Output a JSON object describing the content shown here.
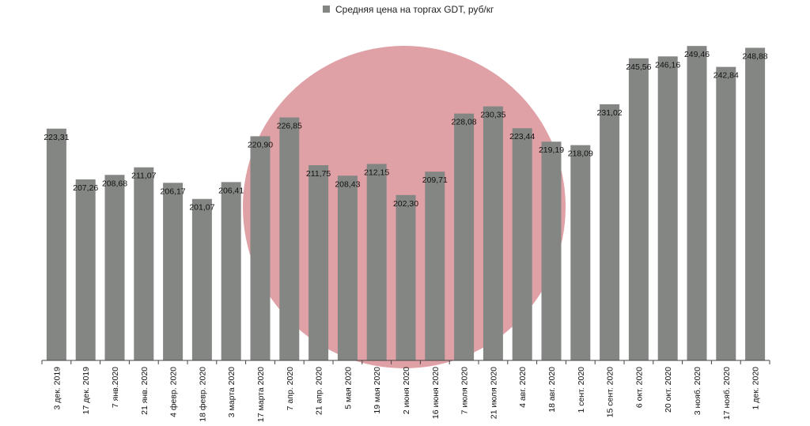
{
  "chart_data": {
    "type": "bar",
    "title": "",
    "xlabel": "",
    "ylabel": "",
    "ylim": [
      150,
      255
    ],
    "grid": false,
    "legend_position": "top-center",
    "series": [
      {
        "name": "Средняя цена на торгах GDT, руб/кг",
        "color": "#838683",
        "values": [
          223.31,
          207.26,
          208.68,
          211.07,
          206.17,
          201.07,
          206.41,
          220.9,
          226.85,
          211.75,
          208.43,
          212.15,
          202.3,
          209.71,
          228.08,
          230.35,
          223.44,
          219.19,
          218.09,
          231.02,
          245.56,
          246.16,
          249.46,
          242.84,
          248.88
        ],
        "labels": [
          "223,31",
          "207,26",
          "208,68",
          "211,07",
          "206,17",
          "201,07",
          "206,41",
          "220,90",
          "226,85",
          "211,75",
          "208,43",
          "212,15",
          "202,30",
          "209,71",
          "228,08",
          "230,35",
          "223,44",
          "219,19",
          "218,09",
          "231,02",
          "245,56",
          "246,16",
          "249,46",
          "242,84",
          "248,88"
        ]
      }
    ],
    "categories": [
      "3 дек. 2019",
      "17 дек. 2019",
      "7 янв.2020",
      "21 янв. 2020",
      "4 февр. 2020",
      "18 февр. 2020",
      "3 марта 2020",
      "17 марта 2020",
      "7 апр. 2020",
      "21 апр. 2020",
      "5 мая 2020",
      "19 мая 2020",
      "2 июня 2020",
      "16 июня 2020",
      "7 июля 2020",
      "21 июля 2020",
      "4 авг. 2020",
      "18 авг. 2020",
      "1 сент. 2020",
      "15 сент. 2020",
      "6 окт. 2020",
      "20 окт. 2020",
      "3 нояб. 2020",
      "17 нояб. 2020",
      "1 дек. 2020"
    ],
    "watermark_color": "#e0a1a6"
  }
}
